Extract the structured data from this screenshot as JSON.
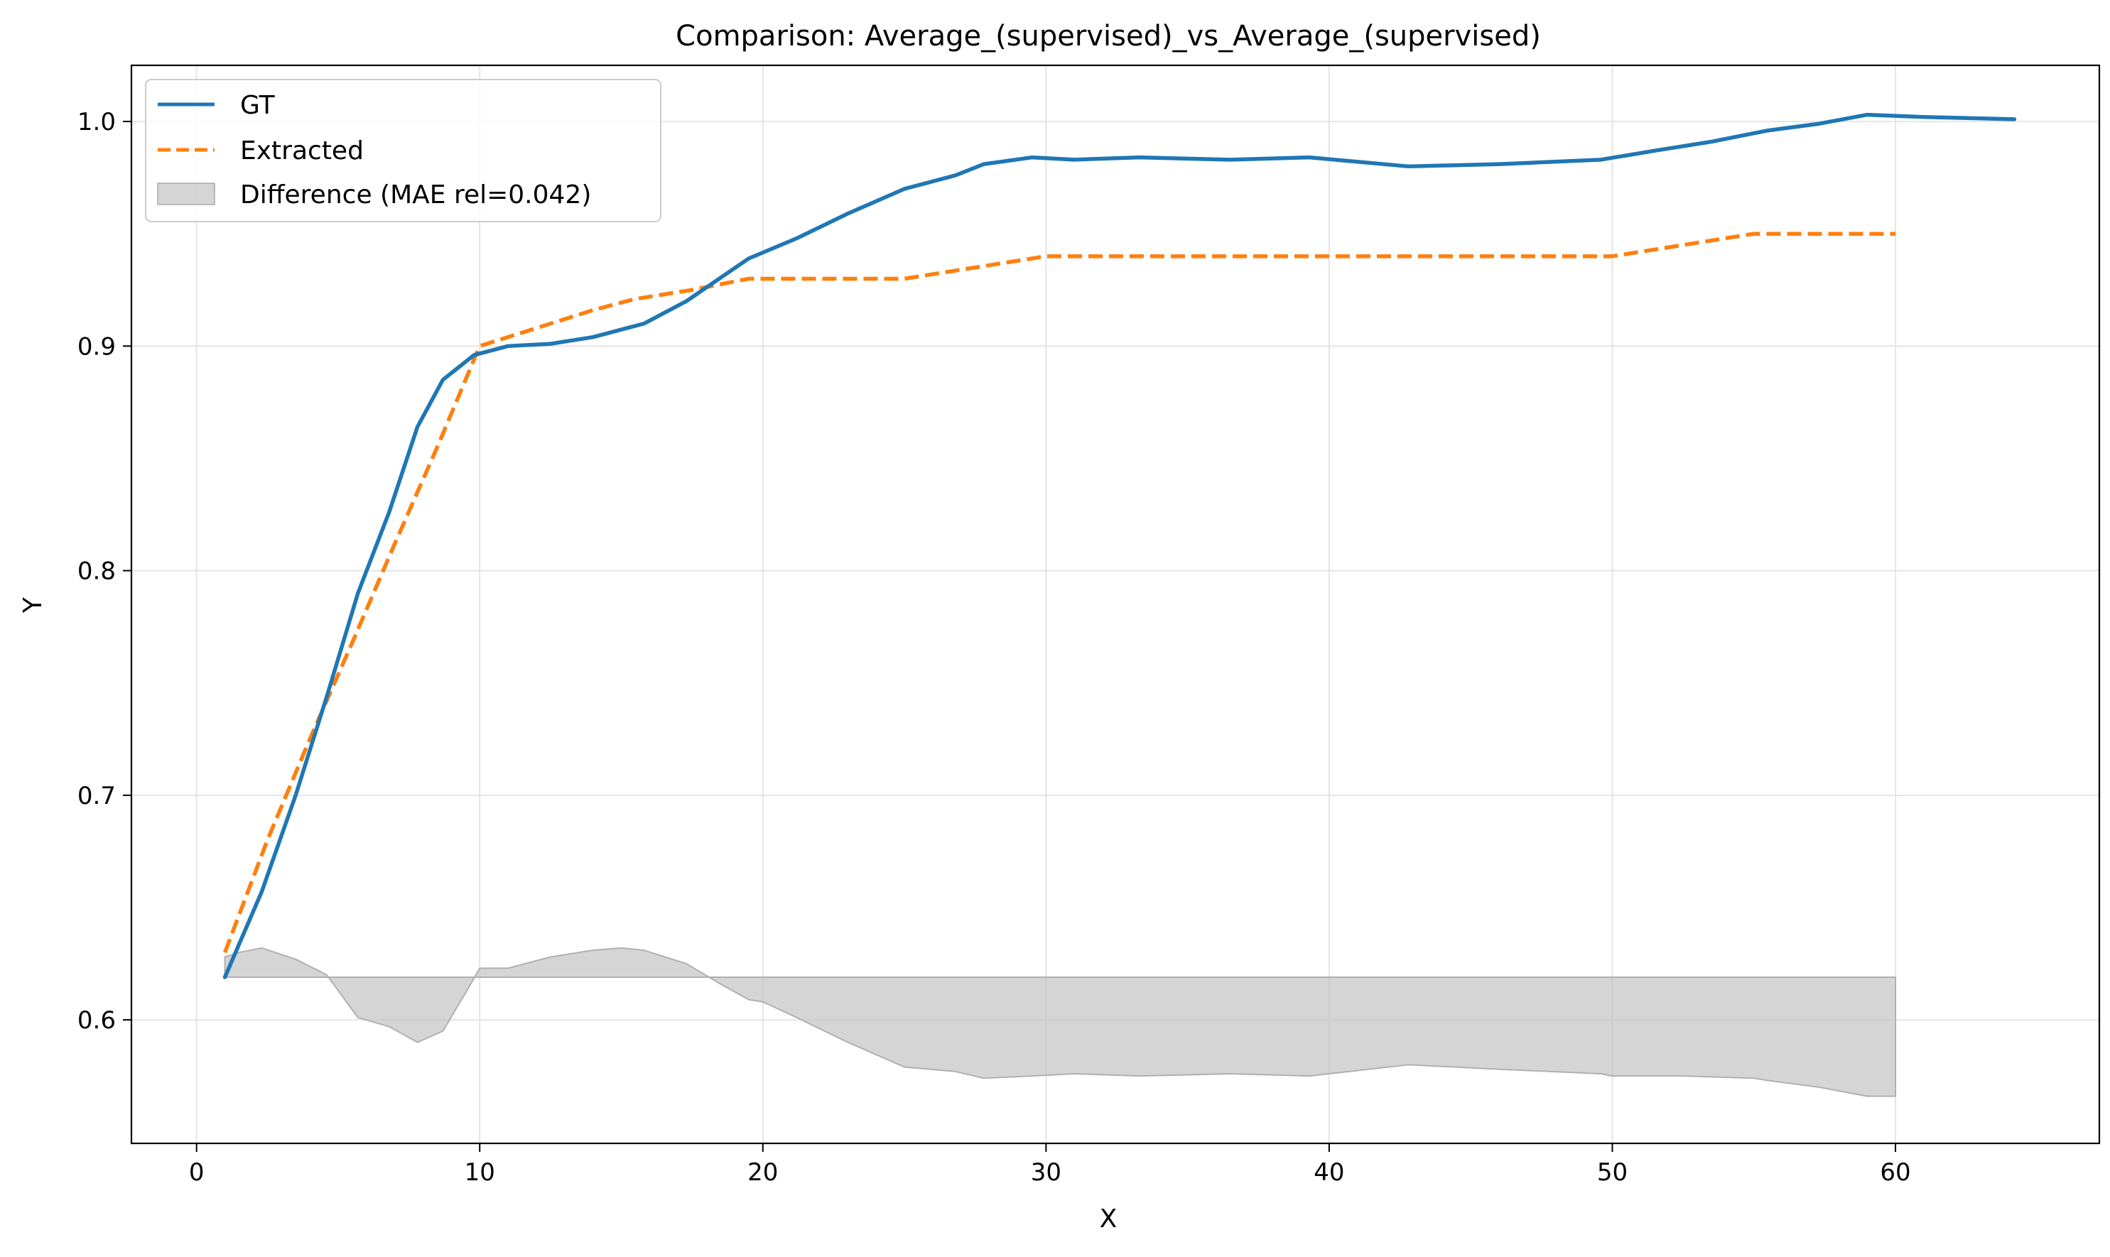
{
  "chart_data": {
    "type": "line",
    "title": "Comparison: Average_(supervised)_vs_Average_(supervised)",
    "xlabel": "X",
    "ylabel": "Y",
    "xlim": [
      -2.3,
      67.2
    ],
    "ylim": [
      0.545,
      1.025
    ],
    "x_ticks": [
      0,
      10,
      20,
      30,
      40,
      50,
      60
    ],
    "y_ticks": [
      0.6,
      0.7,
      0.8,
      0.9,
      1.0
    ],
    "x_tick_labels": [
      "0",
      "10",
      "20",
      "30",
      "40",
      "50",
      "60"
    ],
    "y_tick_labels": [
      "0.6",
      "0.7",
      "0.8",
      "0.9",
      "1.0"
    ],
    "grid": true,
    "legend_position": "top-left",
    "colors": {
      "gt": "#1f77b4",
      "extracted": "#ff7f0e",
      "difference": "#bfbfbf"
    },
    "difference_baseline": 0.619,
    "series": [
      {
        "name": "GT",
        "style": "solid",
        "x": [
          1.0,
          2.3,
          3.5,
          4.6,
          5.7,
          6.8,
          7.8,
          8.7,
          9.8,
          11.0,
          12.5,
          14.0,
          15.8,
          17.3,
          19.5,
          21.2,
          23.0,
          25.0,
          26.8,
          27.8,
          29.5,
          31.0,
          33.3,
          36.5,
          39.3,
          42.8,
          46.0,
          49.6,
          51.5,
          53.5,
          55.5,
          57.3,
          59.0,
          61.0,
          64.2
        ],
        "y": [
          0.619,
          0.657,
          0.7,
          0.744,
          0.79,
          0.826,
          0.864,
          0.885,
          0.896,
          0.9,
          0.901,
          0.904,
          0.91,
          0.92,
          0.939,
          0.948,
          0.959,
          0.97,
          0.976,
          0.981,
          0.984,
          0.983,
          0.984,
          0.983,
          0.984,
          0.98,
          0.981,
          0.983,
          0.987,
          0.991,
          0.996,
          0.999,
          1.003,
          1.002,
          1.001
        ]
      },
      {
        "name": "Extracted",
        "style": "dashed",
        "x": [
          1.0,
          2.5,
          4.0,
          5.5,
          7.0,
          8.5,
          10.0,
          12.5,
          14.0,
          15.5,
          17.5,
          19.5,
          25.0,
          30.0,
          35.0,
          40.0,
          45.0,
          50.0,
          52.5,
          55.0,
          57.5,
          60.0
        ],
        "y": [
          0.63,
          0.68,
          0.725,
          0.768,
          0.812,
          0.855,
          0.9,
          0.91,
          0.916,
          0.921,
          0.925,
          0.93,
          0.93,
          0.94,
          0.94,
          0.94,
          0.94,
          0.94,
          0.945,
          0.95,
          0.95,
          0.95
        ]
      },
      {
        "name": "Difference (MAE rel=0.042)",
        "style": "fill",
        "x": [
          1.0,
          1.5,
          2.3,
          3.5,
          4.6,
          5.7,
          6.8,
          7.8,
          8.7,
          9.5,
          10.0,
          11.0,
          12.5,
          14.0,
          15.0,
          15.8,
          17.3,
          18.5,
          19.5,
          20.0,
          21.2,
          23.0,
          25.0,
          26.8,
          27.8,
          29.5,
          31.0,
          33.3,
          36.5,
          39.3,
          42.8,
          46.0,
          49.6,
          50.0,
          52.5,
          55.0,
          55.5,
          57.3,
          59.0,
          60.0
        ],
        "y": [
          0.628,
          0.63,
          0.632,
          0.627,
          0.62,
          0.601,
          0.597,
          0.59,
          0.595,
          0.612,
          0.623,
          0.623,
          0.628,
          0.631,
          0.632,
          0.631,
          0.625,
          0.616,
          0.609,
          0.608,
          0.601,
          0.59,
          0.579,
          0.577,
          0.574,
          0.575,
          0.576,
          0.575,
          0.576,
          0.575,
          0.58,
          0.578,
          0.576,
          0.575,
          0.575,
          0.574,
          0.573,
          0.57,
          0.566,
          0.566
        ]
      }
    ]
  }
}
